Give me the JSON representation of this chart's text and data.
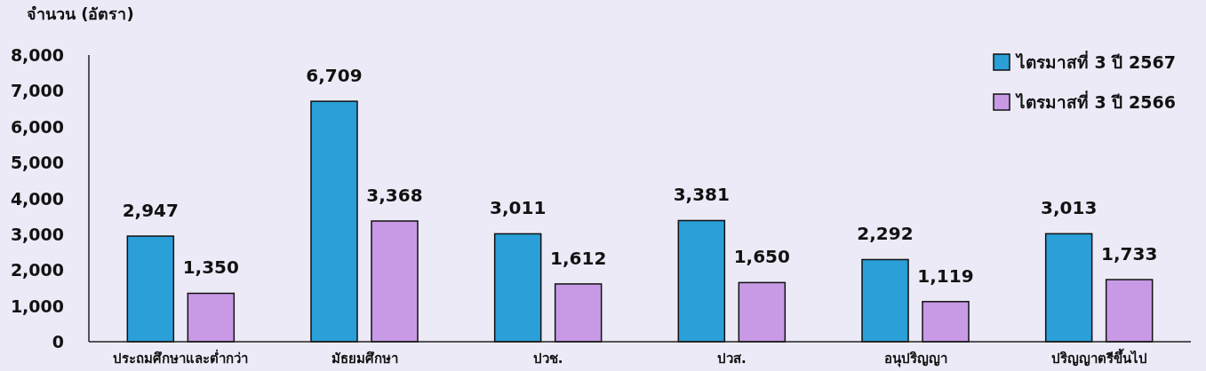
{
  "chart_data": {
    "type": "bar",
    "ylabel": "จำนวน (อัตรา)",
    "categories": [
      "ประถมศึกษาและต่ำกว่า",
      "มัธยมศึกษา",
      "ปวช.",
      "ปวส.",
      "อนุปริญญา",
      "ปริญญาตรีขึ้นไป"
    ],
    "series": [
      {
        "name": "ไตรมาสที่ 3 ปี 2567",
        "color": "#2a9fd8",
        "values": [
          2947,
          6709,
          3011,
          3381,
          2292,
          3013
        ],
        "value_labels": [
          "2,947",
          "6,709",
          "3,011",
          "3,381",
          "2,292",
          "3,013"
        ]
      },
      {
        "name": "ไตรมาสที่ 3 ปี 2566",
        "color": "#c89ae6",
        "values": [
          1350,
          3368,
          1612,
          1650,
          1119,
          1733
        ],
        "value_labels": [
          "1,350",
          "3,368",
          "1,612",
          "1,650",
          "1,119",
          "1,733"
        ]
      }
    ],
    "ylim": [
      0,
      8000
    ],
    "yticks": [
      {
        "value": 0,
        "label": "0"
      },
      {
        "value": 1000,
        "label": "1,000"
      },
      {
        "value": 2000,
        "label": "2,000"
      },
      {
        "value": 3000,
        "label": "3,000"
      },
      {
        "value": 4000,
        "label": "4,000"
      },
      {
        "value": 5000,
        "label": "5,000"
      },
      {
        "value": 6000,
        "label": "6,000"
      },
      {
        "value": 7000,
        "label": "7,000"
      },
      {
        "value": 8000,
        "label": "8,000"
      }
    ],
    "grid": false,
    "legend": "top right"
  }
}
